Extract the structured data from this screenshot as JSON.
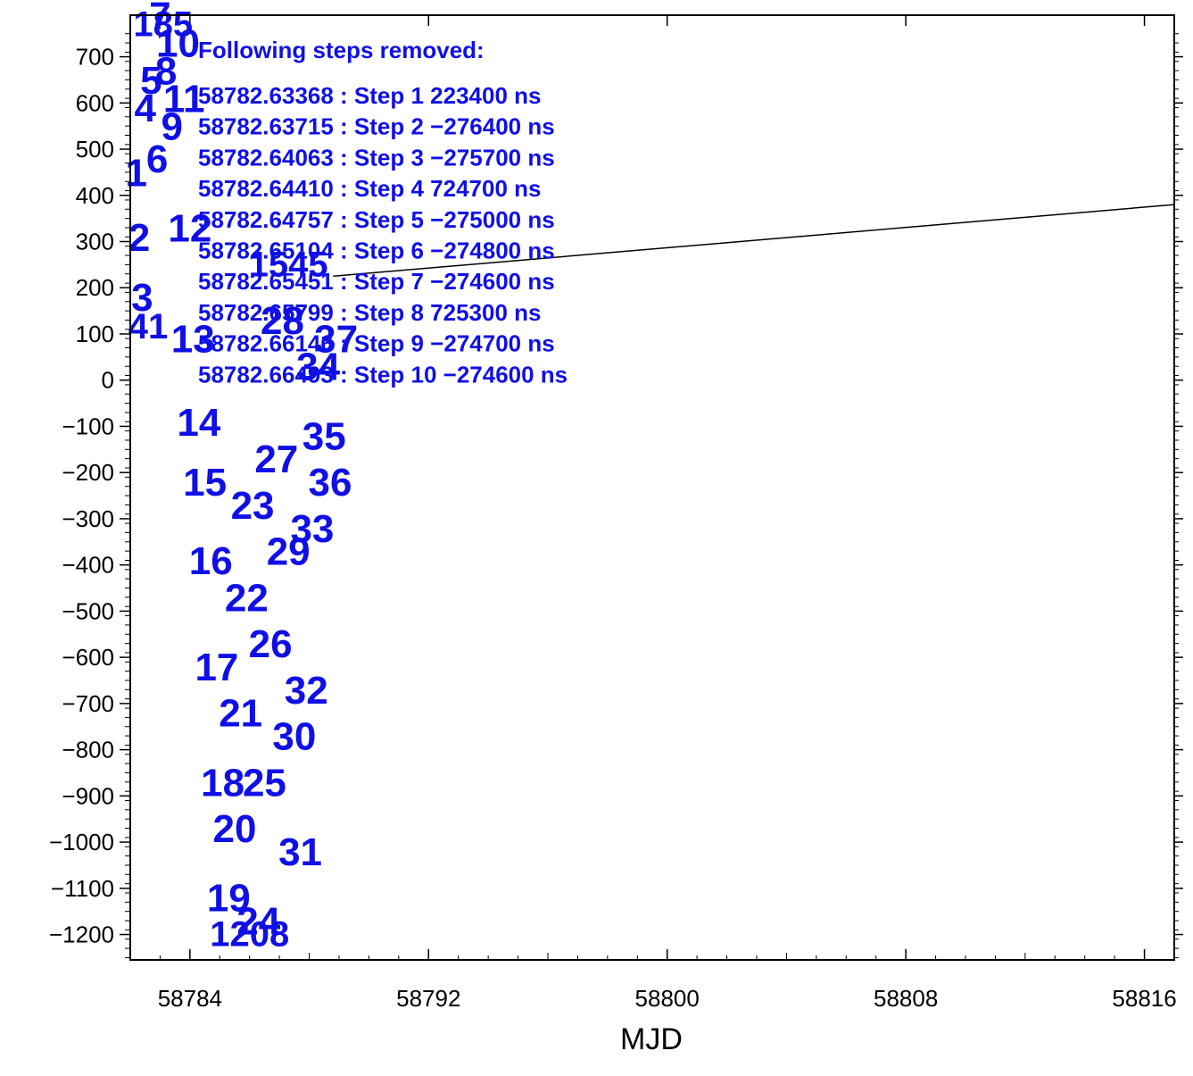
{
  "chart_data": {
    "type": "scatter",
    "title": "",
    "xlabel": "MJD",
    "ylabel": "",
    "xlim": [
      58782.0,
      58817.0
    ],
    "ylim": [
      -1255,
      790
    ],
    "x_ticks": [
      58784,
      58792,
      58800,
      58808,
      58816
    ],
    "x_tick_labels": [
      "58784",
      "58792",
      "58800",
      "58808",
      "58816"
    ],
    "y_ticks": [
      700,
      600,
      500,
      400,
      300,
      200,
      100,
      0,
      -100,
      -200,
      -300,
      -400,
      -500,
      -600,
      -700,
      -800,
      -900,
      -1000,
      -1100,
      -1200
    ],
    "y_tick_labels": [
      "700",
      "600",
      "500",
      "400",
      "300",
      "200",
      "100",
      "0",
      "−100",
      "−200",
      "−300",
      "−400",
      "−500",
      "−600",
      "−700",
      "−800",
      "−900",
      "−1000",
      "−1100",
      "−1200"
    ],
    "grid": false,
    "series": [
      {
        "color": "#1010e6",
        "marker": "index-number",
        "points": [
          {
            "x": 58782.2,
            "y": 420
          },
          {
            "x": 58782.3,
            "y": 280
          },
          {
            "x": 58782.4,
            "y": 150
          },
          {
            "x": 58782.5,
            "y": 560
          },
          {
            "x": 58782.7,
            "y": 620
          },
          {
            "x": 58782.9,
            "y": 450
          },
          {
            "x": 58783.0,
            "y": 760
          },
          {
            "x": 58783.2,
            "y": 640
          },
          {
            "x": 58783.4,
            "y": 520
          },
          {
            "x": 58783.6,
            "y": 700
          },
          {
            "x": 58783.8,
            "y": 580
          },
          {
            "x": 58784.0,
            "y": 300
          },
          {
            "x": 58784.1,
            "y": 60
          },
          {
            "x": 58784.3,
            "y": -120
          },
          {
            "x": 58784.5,
            "y": -250
          },
          {
            "x": 58784.7,
            "y": -420
          },
          {
            "x": 58784.9,
            "y": -650
          },
          {
            "x": 58785.1,
            "y": -900
          },
          {
            "x": 58785.3,
            "y": -1150
          },
          {
            "x": 58785.5,
            "y": -1000
          },
          {
            "x": 58785.7,
            "y": -750
          },
          {
            "x": 58785.9,
            "y": -500
          },
          {
            "x": 58786.1,
            "y": -300
          },
          {
            "x": 58786.3,
            "y": -1200
          },
          {
            "x": 58786.5,
            "y": -900
          },
          {
            "x": 58786.7,
            "y": -600
          },
          {
            "x": 58786.9,
            "y": -200
          },
          {
            "x": 58787.1,
            "y": 100
          },
          {
            "x": 58787.3,
            "y": -400
          },
          {
            "x": 58787.5,
            "y": -800
          },
          {
            "x": 58787.7,
            "y": -1050
          },
          {
            "x": 58787.9,
            "y": -700
          },
          {
            "x": 58788.1,
            "y": -350
          },
          {
            "x": 58788.3,
            "y": 0
          },
          {
            "x": 58788.5,
            "y": -150
          },
          {
            "x": 58788.7,
            "y": -250
          },
          {
            "x": 58788.9,
            "y": 60
          }
        ]
      },
      {
        "color": "#000000",
        "marker": "line",
        "points": [
          {
            "x": 58788.8,
            "y": 225
          },
          {
            "x": 58817.0,
            "y": 380
          }
        ]
      }
    ],
    "point_labels": [
      {
        "text": "185",
        "x": 58783.1,
        "y": 745
      },
      {
        "text": "1545",
        "x": 58787.3,
        "y": 225
      },
      {
        "text": "1208",
        "x": 58786.0,
        "y": -1225
      },
      {
        "text": "41",
        "x": 58782.6,
        "y": 90
      }
    ],
    "annotations": {
      "header": "Following steps removed:",
      "lines": [
        "58782.63368 : Step 1 223400 ns",
        "58782.63715 : Step 2 −276400 ns",
        "58782.64063 : Step 3 −275700 ns",
        "58782.64410 : Step 4 724700 ns",
        "58782.64757 : Step 5 −275000 ns",
        "58782.65104 : Step 6 −274800 ns",
        "58782.65451 : Step 7 −274600 ns",
        "58782.65799 : Step 8 725300 ns",
        "58782.66146 : Step 9 −274700 ns",
        "58782.66493 : Step 10 −274600 ns"
      ]
    }
  }
}
